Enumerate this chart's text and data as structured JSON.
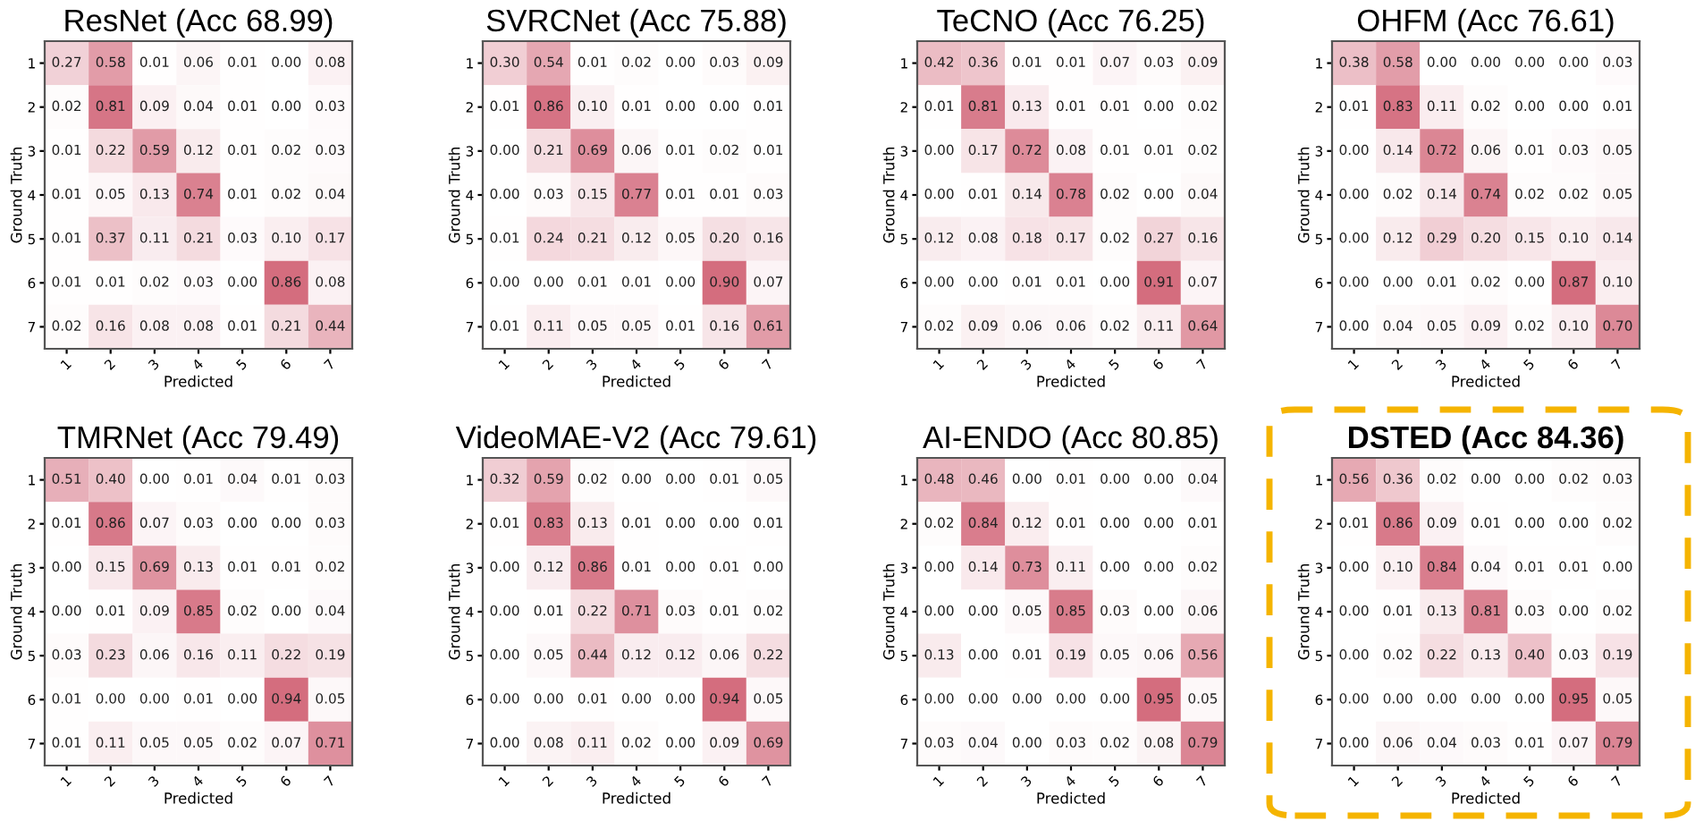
{
  "chart_data": [
    {
      "type": "heatmap",
      "data_labels": true,
      "title": "ResNet (Acc 68.99)",
      "xlabel": "Predicted",
      "ylabel": "Ground Truth",
      "categories": [
        "1",
        "2",
        "3",
        "4",
        "5",
        "6",
        "7"
      ],
      "y_categories": [
        "1",
        "2",
        "3",
        "4",
        "5",
        "6",
        "7"
      ],
      "cells": [
        [
          0.27,
          0.58,
          0.01,
          0.06,
          0.01,
          0.0,
          0.08
        ],
        [
          0.02,
          0.81,
          0.09,
          0.04,
          0.01,
          0.0,
          0.03
        ],
        [
          0.01,
          0.22,
          0.59,
          0.12,
          0.01,
          0.02,
          0.03
        ],
        [
          0.01,
          0.05,
          0.13,
          0.74,
          0.01,
          0.02,
          0.04
        ],
        [
          0.01,
          0.37,
          0.11,
          0.21,
          0.03,
          0.1,
          0.17
        ],
        [
          0.01,
          0.01,
          0.02,
          0.03,
          0.0,
          0.86,
          0.08
        ],
        [
          0.02,
          0.16,
          0.08,
          0.08,
          0.01,
          0.21,
          0.44
        ]
      ],
      "cell_labels": [
        [
          "0.27",
          "0.58",
          "0.01",
          "0.06",
          "0.01",
          "0.00",
          "0.08"
        ],
        [
          "0.02",
          "0.81",
          "0.09",
          "0.04",
          "0.01",
          "0.00",
          "0.03"
        ],
        [
          "0.01",
          "0.22",
          "0.59",
          "0.12",
          "0.01",
          "0.02",
          "0.03"
        ],
        [
          "0.01",
          "0.05",
          "0.13",
          "0.74",
          "0.01",
          "0.02",
          "0.04"
        ],
        [
          "0.01",
          "0.37",
          "0.11",
          "0.21",
          "0.03",
          "0.10",
          "0.17"
        ],
        [
          "0.01",
          "0.01",
          "0.02",
          "0.03",
          "0.00",
          "0.86",
          "0.08"
        ],
        [
          "0.02",
          "0.16",
          "0.08",
          "0.08",
          "0.01",
          "0.21",
          "0.44"
        ]
      ]
    },
    {
      "type": "heatmap",
      "data_labels": true,
      "title": "SVRCNet (Acc 75.88)",
      "xlabel": "Predicted",
      "ylabel": "Ground Truth",
      "categories": [
        "1",
        "2",
        "3",
        "4",
        "5",
        "6",
        "7"
      ],
      "y_categories": [
        "1",
        "2",
        "3",
        "4",
        "5",
        "6",
        "7"
      ],
      "cells": [
        [
          0.3,
          0.54,
          0.01,
          0.02,
          0.0,
          0.03,
          0.09
        ],
        [
          0.01,
          0.86,
          0.1,
          0.01,
          0.0,
          0.0,
          0.01
        ],
        [
          0.0,
          0.21,
          0.69,
          0.06,
          0.01,
          0.02,
          0.01
        ],
        [
          0.0,
          0.03,
          0.15,
          0.77,
          0.01,
          0.01,
          0.03
        ],
        [
          0.01,
          0.24,
          0.21,
          0.12,
          0.05,
          0.2,
          0.16
        ],
        [
          0.0,
          0.0,
          0.01,
          0.01,
          0.0,
          0.9,
          0.07
        ],
        [
          0.01,
          0.11,
          0.05,
          0.05,
          0.01,
          0.16,
          0.61
        ]
      ],
      "cell_labels": [
        [
          "0.30",
          "0.54",
          "0.01",
          "0.02",
          "0.00",
          "0.03",
          "0.09"
        ],
        [
          "0.01",
          "0.86",
          "0.10",
          "0.01",
          "0.00",
          "0.00",
          "0.01"
        ],
        [
          "0.00",
          "0.21",
          "0.69",
          "0.06",
          "0.01",
          "0.02",
          "0.01"
        ],
        [
          "0.00",
          "0.03",
          "0.15",
          "0.77",
          "0.01",
          "0.01",
          "0.03"
        ],
        [
          "0.01",
          "0.24",
          "0.21",
          "0.12",
          "0.05",
          "0.20",
          "0.16"
        ],
        [
          "0.00",
          "0.00",
          "0.01",
          "0.01",
          "0.00",
          "0.90",
          "0.07"
        ],
        [
          "0.01",
          "0.11",
          "0.05",
          "0.05",
          "0.01",
          "0.16",
          "0.61"
        ]
      ]
    },
    {
      "type": "heatmap",
      "data_labels": true,
      "title": "TeCNO (Acc 76.25)",
      "xlabel": "Predicted",
      "ylabel": "Ground Truth",
      "categories": [
        "1",
        "2",
        "3",
        "4",
        "5",
        "6",
        "7"
      ],
      "y_categories": [
        "1",
        "2",
        "3",
        "4",
        "5",
        "6",
        "7"
      ],
      "cells": [
        [
          0.42,
          0.36,
          0.01,
          0.01,
          0.07,
          0.03,
          0.09
        ],
        [
          0.01,
          0.81,
          0.13,
          0.01,
          0.01,
          0.0,
          0.02
        ],
        [
          0.0,
          0.17,
          0.72,
          0.08,
          0.01,
          0.01,
          0.02
        ],
        [
          0.0,
          0.01,
          0.14,
          0.78,
          0.02,
          0.0,
          0.04
        ],
        [
          0.12,
          0.08,
          0.18,
          0.17,
          0.02,
          0.27,
          0.16
        ],
        [
          0.0,
          0.0,
          0.01,
          0.01,
          0.0,
          0.91,
          0.07
        ],
        [
          0.02,
          0.09,
          0.06,
          0.06,
          0.02,
          0.11,
          0.64
        ]
      ],
      "cell_labels": [
        [
          "0.42",
          "0.36",
          "0.01",
          "0.01",
          "0.07",
          "0.03",
          "0.09"
        ],
        [
          "0.01",
          "0.81",
          "0.13",
          "0.01",
          "0.01",
          "0.00",
          "0.02"
        ],
        [
          "0.00",
          "0.17",
          "0.72",
          "0.08",
          "0.01",
          "0.01",
          "0.02"
        ],
        [
          "0.00",
          "0.01",
          "0.14",
          "0.78",
          "0.02",
          "0.00",
          "0.04"
        ],
        [
          "0.12",
          "0.08",
          "0.18",
          "0.17",
          "0.02",
          "0.27",
          "0.16"
        ],
        [
          "0.00",
          "0.00",
          "0.01",
          "0.01",
          "0.00",
          "0.91",
          "0.07"
        ],
        [
          "0.02",
          "0.09",
          "0.06",
          "0.06",
          "0.02",
          "0.11",
          "0.64"
        ]
      ]
    },
    {
      "type": "heatmap",
      "data_labels": true,
      "title": "OHFM (Acc 76.61)",
      "xlabel": "Predicted",
      "ylabel": "Ground Truth",
      "categories": [
        "1",
        "2",
        "3",
        "4",
        "5",
        "6",
        "7"
      ],
      "y_categories": [
        "1",
        "2",
        "3",
        "4",
        "5",
        "6",
        "7"
      ],
      "cells": [
        [
          0.38,
          0.58,
          0.0,
          0.0,
          0.0,
          0.0,
          0.03
        ],
        [
          0.01,
          0.83,
          0.11,
          0.02,
          0.0,
          0.0,
          0.01
        ],
        [
          0.0,
          0.14,
          0.72,
          0.06,
          0.01,
          0.03,
          0.05
        ],
        [
          0.0,
          0.02,
          0.14,
          0.74,
          0.02,
          0.02,
          0.05
        ],
        [
          0.0,
          0.12,
          0.29,
          0.2,
          0.15,
          0.1,
          0.14
        ],
        [
          0.0,
          0.0,
          0.01,
          0.02,
          0.0,
          0.87,
          0.1
        ],
        [
          0.0,
          0.04,
          0.05,
          0.09,
          0.02,
          0.1,
          0.7
        ]
      ],
      "cell_labels": [
        [
          "0.38",
          "0.58",
          "0.00",
          "0.00",
          "0.00",
          "0.00",
          "0.03"
        ],
        [
          "0.01",
          "0.83",
          "0.11",
          "0.02",
          "0.00",
          "0.00",
          "0.01"
        ],
        [
          "0.00",
          "0.14",
          "0.72",
          "0.06",
          "0.01",
          "0.03",
          "0.05"
        ],
        [
          "0.00",
          "0.02",
          "0.14",
          "0.74",
          "0.02",
          "0.02",
          "0.05"
        ],
        [
          "0.00",
          "0.12",
          "0.29",
          "0.20",
          "0.15",
          "0.10",
          "0.14"
        ],
        [
          "0.00",
          "0.00",
          "0.01",
          "0.02",
          "0.00",
          "0.87",
          "0.10"
        ],
        [
          "0.00",
          "0.04",
          "0.05",
          "0.09",
          "0.02",
          "0.10",
          "0.70"
        ]
      ]
    },
    {
      "type": "heatmap",
      "data_labels": true,
      "title": "TMRNet (Acc 79.49)",
      "xlabel": "Predicted",
      "ylabel": "Ground Truth",
      "categories": [
        "1",
        "2",
        "3",
        "4",
        "5",
        "6",
        "7"
      ],
      "y_categories": [
        "1",
        "2",
        "3",
        "4",
        "5",
        "6",
        "7"
      ],
      "cells": [
        [
          0.51,
          0.4,
          0.0,
          0.01,
          0.04,
          0.01,
          0.03
        ],
        [
          0.01,
          0.86,
          0.07,
          0.03,
          0.0,
          0.0,
          0.03
        ],
        [
          0.0,
          0.15,
          0.69,
          0.13,
          0.01,
          0.01,
          0.02
        ],
        [
          0.0,
          0.01,
          0.09,
          0.85,
          0.02,
          0.0,
          0.04
        ],
        [
          0.03,
          0.23,
          0.06,
          0.16,
          0.11,
          0.22,
          0.19
        ],
        [
          0.01,
          0.0,
          0.0,
          0.01,
          0.0,
          0.94,
          0.05
        ],
        [
          0.01,
          0.11,
          0.05,
          0.05,
          0.02,
          0.07,
          0.71
        ]
      ],
      "cell_labels": [
        [
          "0.51",
          "0.40",
          "0.00",
          "0.01",
          "0.04",
          "0.01",
          "0.03"
        ],
        [
          "0.01",
          "0.86",
          "0.07",
          "0.03",
          "0.00",
          "0.00",
          "0.03"
        ],
        [
          "0.00",
          "0.15",
          "0.69",
          "0.13",
          "0.01",
          "0.01",
          "0.02"
        ],
        [
          "0.00",
          "0.01",
          "0.09",
          "0.85",
          "0.02",
          "0.00",
          "0.04"
        ],
        [
          "0.03",
          "0.23",
          "0.06",
          "0.16",
          "0.11",
          "0.22",
          "0.19"
        ],
        [
          "0.01",
          "0.00",
          "0.00",
          "0.01",
          "0.00",
          "0.94",
          "0.05"
        ],
        [
          "0.01",
          "0.11",
          "0.05",
          "0.05",
          "0.02",
          "0.07",
          "0.71"
        ]
      ]
    },
    {
      "type": "heatmap",
      "data_labels": true,
      "title": "VideoMAE-V2 (Acc 79.61)",
      "xlabel": "Predicted",
      "ylabel": "Ground Truth",
      "categories": [
        "1",
        "2",
        "3",
        "4",
        "5",
        "6",
        "7"
      ],
      "y_categories": [
        "1",
        "2",
        "3",
        "4",
        "5",
        "6",
        "7"
      ],
      "cells": [
        [
          0.32,
          0.59,
          0.02,
          0.0,
          0.0,
          0.01,
          0.05
        ],
        [
          0.01,
          0.83,
          0.13,
          0.01,
          0.0,
          0.0,
          0.01
        ],
        [
          0.0,
          0.12,
          0.86,
          0.01,
          0.0,
          0.01,
          0.0
        ],
        [
          0.0,
          0.01,
          0.22,
          0.71,
          0.03,
          0.01,
          0.02
        ],
        [
          0.0,
          0.05,
          0.44,
          0.12,
          0.12,
          0.06,
          0.22
        ],
        [
          0.0,
          0.0,
          0.01,
          0.0,
          0.0,
          0.94,
          0.05
        ],
        [
          0.0,
          0.08,
          0.11,
          0.02,
          0.0,
          0.09,
          0.69
        ]
      ],
      "cell_labels": [
        [
          "0.32",
          "0.59",
          "0.02",
          "0.00",
          "0.00",
          "0.01",
          "0.05"
        ],
        [
          "0.01",
          "0.83",
          "0.13",
          "0.01",
          "0.00",
          "0.00",
          "0.01"
        ],
        [
          "0.00",
          "0.12",
          "0.86",
          "0.01",
          "0.00",
          "0.01",
          "0.00"
        ],
        [
          "0.00",
          "0.01",
          "0.22",
          "0.71",
          "0.03",
          "0.01",
          "0.02"
        ],
        [
          "0.00",
          "0.05",
          "0.44",
          "0.12",
          "0.12",
          "0.06",
          "0.22"
        ],
        [
          "0.00",
          "0.00",
          "0.01",
          "0.00",
          "0.00",
          "0.94",
          "0.05"
        ],
        [
          "0.00",
          "0.08",
          "0.11",
          "0.02",
          "0.00",
          "0.09",
          "0.69"
        ]
      ]
    },
    {
      "type": "heatmap",
      "data_labels": true,
      "title": "AI-ENDO (Acc 80.85)",
      "xlabel": "Predicted",
      "ylabel": "Ground Truth",
      "categories": [
        "1",
        "2",
        "3",
        "4",
        "5",
        "6",
        "7"
      ],
      "y_categories": [
        "1",
        "2",
        "3",
        "4",
        "5",
        "6",
        "7"
      ],
      "cells": [
        [
          0.48,
          0.46,
          0.0,
          0.01,
          0.0,
          0.0,
          0.04
        ],
        [
          0.02,
          0.84,
          0.12,
          0.01,
          0.0,
          0.0,
          0.01
        ],
        [
          0.0,
          0.14,
          0.73,
          0.11,
          0.0,
          0.0,
          0.02
        ],
        [
          0.0,
          0.0,
          0.05,
          0.85,
          0.03,
          0.0,
          0.06
        ],
        [
          0.13,
          0.0,
          0.01,
          0.19,
          0.05,
          0.06,
          0.56
        ],
        [
          0.0,
          0.0,
          0.0,
          0.0,
          0.0,
          0.95,
          0.05
        ],
        [
          0.03,
          0.04,
          0.0,
          0.03,
          0.02,
          0.08,
          0.79
        ]
      ],
      "cell_labels": [
        [
          "0.48",
          "0.46",
          "0.00",
          "0.01",
          "0.00",
          "0.00",
          "0.04"
        ],
        [
          "0.02",
          "0.84",
          "0.12",
          "0.01",
          "0.00",
          "0.00",
          "0.01"
        ],
        [
          "0.00",
          "0.14",
          "0.73",
          "0.11",
          "0.00",
          "0.00",
          "0.02"
        ],
        [
          "0.00",
          "0.00",
          "0.05",
          "0.85",
          "0.03",
          "0.00",
          "0.06"
        ],
        [
          "0.13",
          "0.00",
          "0.01",
          "0.19",
          "0.05",
          "0.06",
          "0.56"
        ],
        [
          "0.00",
          "0.00",
          "0.00",
          "0.00",
          "0.00",
          "0.95",
          "0.05"
        ],
        [
          "0.03",
          "0.04",
          "0.00",
          "0.03",
          "0.02",
          "0.08",
          "0.79"
        ]
      ]
    },
    {
      "type": "heatmap",
      "data_labels": true,
      "title": "DSTED (Acc 84.36)",
      "xlabel": "Predicted",
      "ylabel": "Ground Truth",
      "categories": [
        "1",
        "2",
        "3",
        "4",
        "5",
        "6",
        "7"
      ],
      "y_categories": [
        "1",
        "2",
        "3",
        "4",
        "5",
        "6",
        "7"
      ],
      "cells": [
        [
          0.56,
          0.36,
          0.02,
          0.0,
          0.0,
          0.02,
          0.03
        ],
        [
          0.01,
          0.86,
          0.09,
          0.01,
          0.0,
          0.0,
          0.02
        ],
        [
          0.0,
          0.1,
          0.84,
          0.04,
          0.01,
          0.01,
          0.0
        ],
        [
          0.0,
          0.01,
          0.13,
          0.81,
          0.03,
          0.0,
          0.02
        ],
        [
          0.0,
          0.02,
          0.22,
          0.13,
          0.4,
          0.03,
          0.19
        ],
        [
          0.0,
          0.0,
          0.0,
          0.0,
          0.0,
          0.95,
          0.05
        ],
        [
          0.0,
          0.06,
          0.04,
          0.03,
          0.01,
          0.07,
          0.79
        ]
      ],
      "cell_labels": [
        [
          "0.56",
          "0.36",
          "0.02",
          "0.00",
          "0.00",
          "0.02",
          "0.03"
        ],
        [
          "0.01",
          "0.86",
          "0.09",
          "0.01",
          "0.00",
          "0.00",
          "0.02"
        ],
        [
          "0.00",
          "0.10",
          "0.84",
          "0.04",
          "0.01",
          "0.01",
          "0.00"
        ],
        [
          "0.00",
          "0.01",
          "0.13",
          "0.81",
          "0.03",
          "0.00",
          "0.02"
        ],
        [
          "0.00",
          "0.02",
          "0.22",
          "0.13",
          "0.40",
          "0.03",
          "0.19"
        ],
        [
          "0.00",
          "0.00",
          "0.00",
          "0.00",
          "0.00",
          "0.95",
          "0.05"
        ],
        [
          "0.00",
          "0.06",
          "0.04",
          "0.03",
          "0.01",
          "0.07",
          "0.79"
        ]
      ]
    }
  ]
}
